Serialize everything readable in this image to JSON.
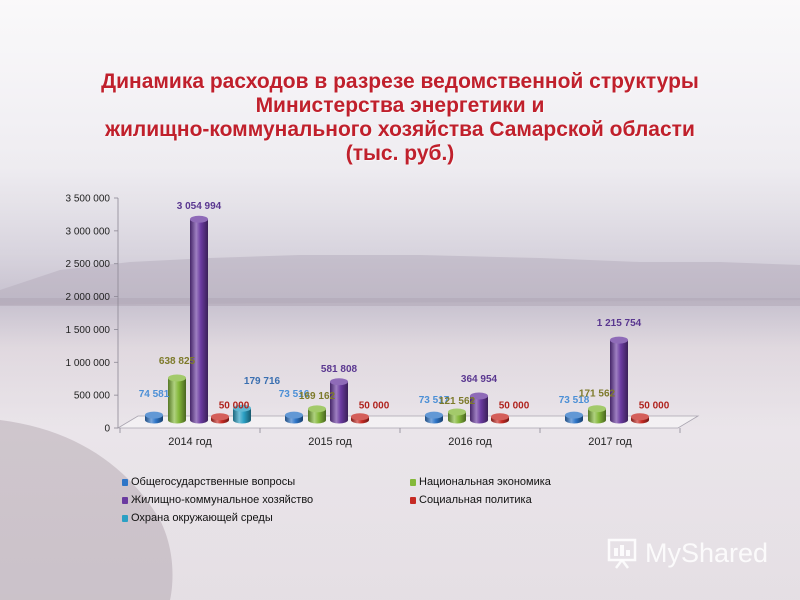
{
  "title_lines": [
    "Динамика расходов в разрезе ведомственной структуры",
    "Министерства энергетики и",
    "жилищно-коммунального хозяйства Самарской области",
    "(тыс. руб.)"
  ],
  "chart_data": {
    "type": "bar",
    "title": "Динамика расходов в разрезе ведомственной структуры Министерства энергетики и жилищно-коммунального хозяйства Самарской области (тыс. руб.)",
    "categories": [
      "2014 год",
      "2015 год",
      "2016 год",
      "2017 год"
    ],
    "series": [
      {
        "name": "Общегосударственные вопросы",
        "color": "#2e75c7",
        "values": [
          74581,
          73516,
          73517,
          73518
        ],
        "labels": [
          "74 581",
          "73 516",
          "73 517",
          "73 518"
        ]
      },
      {
        "name": "Национальная экономика",
        "color": "#84b83a",
        "values": [
          638825,
          169162,
          121562,
          171562
        ],
        "labels": [
          "638 825",
          "169 162",
          "121 562",
          "171 562"
        ]
      },
      {
        "name": "Жилищно-коммунальное хозяйство",
        "color": "#6a3aa0",
        "values": [
          3054994,
          581808,
          364954,
          1215754
        ],
        "labels": [
          "3 054 994",
          "581 808",
          "364 954",
          "1 215 754"
        ]
      },
      {
        "name": "Социальная политика",
        "color": "#c62a24",
        "values": [
          50000,
          50000,
          50000,
          50000
        ],
        "labels": [
          "50 000",
          "50 000",
          "50 000",
          "50 000"
        ]
      },
      {
        "name": "Охрана окружающей среды",
        "color": "#2ba0c4",
        "values": [
          179716,
          null,
          null,
          null
        ],
        "labels": [
          "179 716",
          "",
          "",
          ""
        ]
      }
    ],
    "yticks": [
      "0",
      "500 000",
      "1 000 000",
      "1 500 000",
      "2 000 000",
      "2 500 000",
      "3 000 000",
      "3 500 000"
    ],
    "ylim": [
      0,
      3500000
    ],
    "grid": false,
    "legend_position": "bottom",
    "style": "3d-cylinder"
  },
  "logo": {
    "text": "MyShared"
  }
}
